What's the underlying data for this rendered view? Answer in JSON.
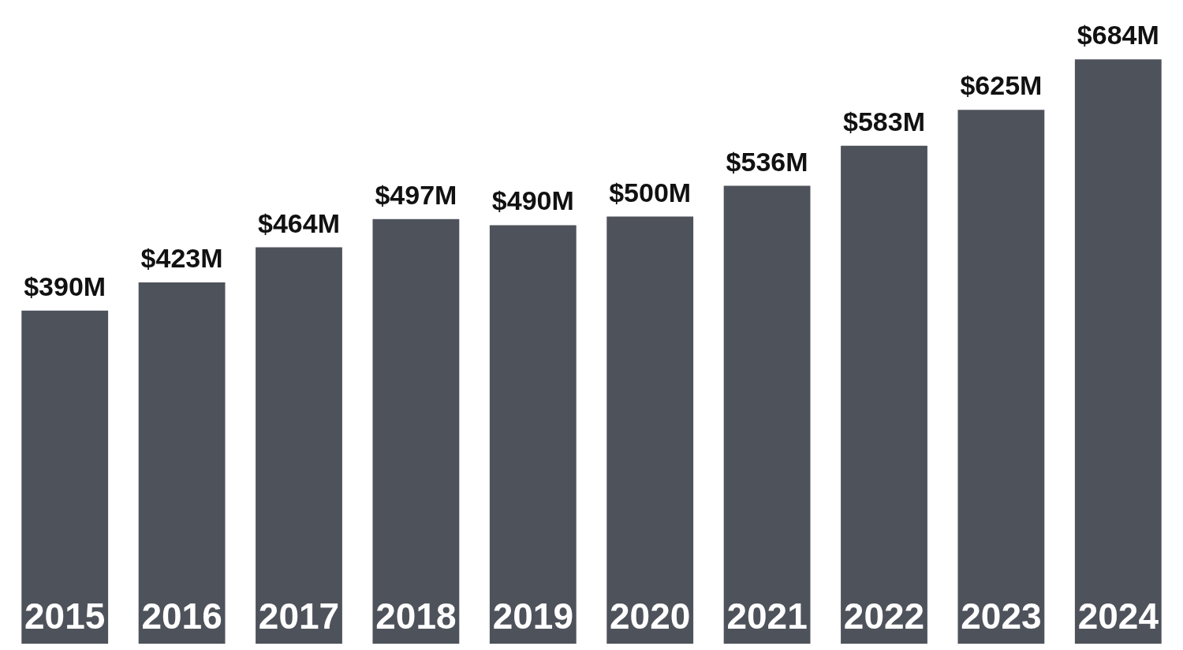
{
  "chart_data": {
    "type": "bar",
    "categories": [
      "2015",
      "2016",
      "2017",
      "2018",
      "2019",
      "2020",
      "2021",
      "2022",
      "2023",
      "2024"
    ],
    "values": [
      390,
      423,
      464,
      497,
      490,
      500,
      536,
      583,
      625,
      684
    ],
    "value_labels": [
      "$390M",
      "$423M",
      "$464M",
      "$497M",
      "$490M",
      "$500M",
      "$536M",
      "$583M",
      "$625M",
      "$684M"
    ],
    "color": "#4e525b"
  }
}
